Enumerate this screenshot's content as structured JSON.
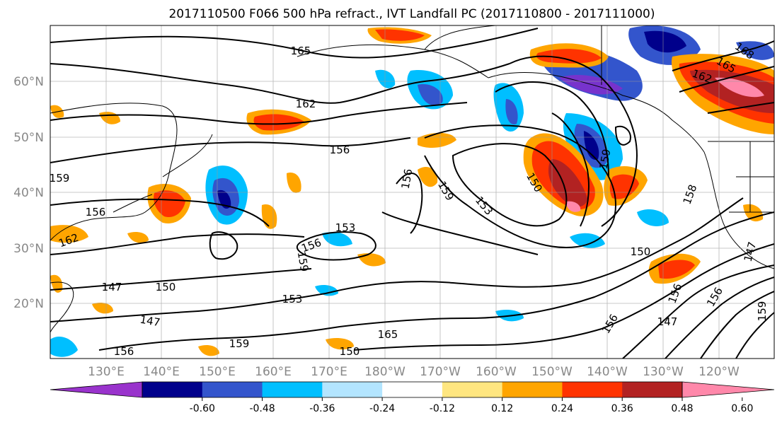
{
  "title": "2017110500 F066 500 hPa refract., IVT Landfall PC (2017110800 - 2017111000)",
  "map": {
    "lat_ticks": [
      "60°N",
      "50°N",
      "40°N",
      "30°N",
      "20°N"
    ],
    "lon_ticks": [
      "130°E",
      "140°E",
      "150°E",
      "160°E",
      "170°E",
      "180°W",
      "170°W",
      "160°W",
      "150°W",
      "140°W",
      "130°W",
      "120°W"
    ],
    "contour_labels": [
      "165",
      "162",
      "156",
      "159",
      "156",
      "159",
      "153",
      "153",
      "156",
      "159",
      "150",
      "159",
      "162",
      "150",
      "147",
      "153",
      "147",
      "165",
      "156",
      "159",
      "150",
      "150",
      "147",
      "156",
      "156",
      "147",
      "159",
      "156",
      "158",
      "156",
      "168",
      "165",
      "162"
    ]
  },
  "colorbar": {
    "tick_labels": [
      "-0.60",
      "-0.48",
      "-0.36",
      "-0.24",
      "-0.12",
      "0.12",
      "0.24",
      "0.36",
      "0.48",
      "0.60"
    ],
    "colors": [
      "#9933cc",
      "#00008b",
      "#3355cc",
      "#00bfff",
      "#b3e5ff",
      "#ffffff",
      "#ffe680",
      "#ffa500",
      "#ff3300",
      "#b22222",
      "#ff88aa"
    ]
  }
}
